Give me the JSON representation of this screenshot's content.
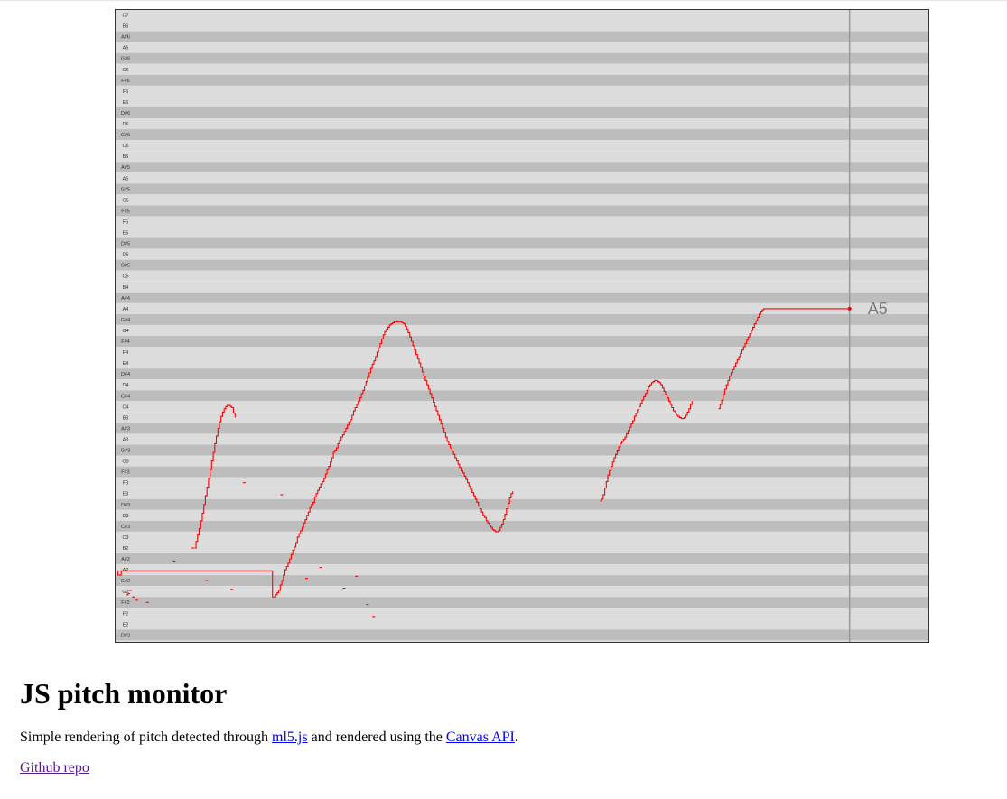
{
  "pitch_chart": {
    "notes_top_to_bottom": [
      "C7",
      "B6",
      "A#6",
      "A6",
      "G#6",
      "G6",
      "F#6",
      "F6",
      "E6",
      "D#6",
      "D6",
      "C#6",
      "C6",
      "B5",
      "A#5",
      "A5",
      "G#5",
      "G5",
      "F#5",
      "F5",
      "E5",
      "D#5",
      "D5",
      "C#5",
      "C5",
      "B4",
      "A#4",
      "A4",
      "G#4",
      "G4",
      "F#4",
      "F4",
      "E4",
      "D#4",
      "D4",
      "C#4",
      "C4",
      "B3",
      "A#3",
      "A3",
      "G#3",
      "G3",
      "F#3",
      "F3",
      "E3",
      "D#3",
      "D3",
      "C#3",
      "C3",
      "B2",
      "A#2",
      "A2",
      "G#2",
      "G2",
      "F#2",
      "F2",
      "E2",
      "D#2",
      "D2"
    ],
    "current_note": "A5",
    "colors": {
      "stripe_light": "#dcdcdc",
      "stripe_dark": "#bdbdbd",
      "trace": "#ff0000",
      "cursor_line": "#999999",
      "current_note_label": "#7a7a7a",
      "border": "#333333"
    }
  },
  "chart_data": {
    "type": "line",
    "title": "",
    "xlabel": "",
    "ylabel": "",
    "y_unit": "semitones relative to C3 (A5 = 21)",
    "x_unit": "sample index",
    "main_trace": [
      [
        0,
        -3.1
      ],
      [
        1,
        -3.5
      ],
      [
        2,
        -3.5
      ],
      [
        3,
        -3.1
      ],
      [
        100,
        -5.5
      ],
      [
        101,
        -5.5
      ],
      [
        102,
        -5.3
      ],
      [
        103,
        -5.1
      ],
      [
        104,
        -4.9
      ],
      [
        105,
        -4.4
      ],
      [
        106,
        -4.0
      ],
      [
        107,
        -3.5
      ],
      [
        108,
        -3.0
      ],
      [
        109,
        -2.7
      ],
      [
        110,
        -2.4
      ],
      [
        111,
        -2.0
      ],
      [
        112,
        -1.6
      ],
      [
        113,
        -1.2
      ],
      [
        114,
        -0.9
      ],
      [
        115,
        -0.5
      ],
      [
        116,
        0.0
      ],
      [
        117,
        0.3
      ],
      [
        118,
        0.6
      ],
      [
        119,
        0.9
      ],
      [
        120,
        1.3
      ],
      [
        121,
        1.6
      ],
      [
        122,
        2.0
      ],
      [
        123,
        2.3
      ],
      [
        124,
        2.7
      ],
      [
        125,
        3.0
      ],
      [
        126,
        3.2
      ],
      [
        127,
        3.7
      ],
      [
        128,
        4.0
      ],
      [
        129,
        4.3
      ],
      [
        130,
        4.6
      ],
      [
        131,
        4.9
      ],
      [
        132,
        5.1
      ],
      [
        133,
        5.4
      ],
      [
        134,
        5.8
      ],
      [
        135,
        6.2
      ],
      [
        136,
        6.5
      ],
      [
        137,
        6.9
      ],
      [
        138,
        7.3
      ],
      [
        139,
        7.8
      ],
      [
        140,
        8.0
      ],
      [
        141,
        8.2
      ],
      [
        142,
        8.6
      ],
      [
        143,
        8.9
      ],
      [
        144,
        9.2
      ],
      [
        145,
        9.4
      ],
      [
        146,
        9.7
      ],
      [
        147,
        10.0
      ],
      [
        148,
        10.3
      ],
      [
        149,
        10.6
      ],
      [
        150,
        10.8
      ],
      [
        151,
        11.2
      ],
      [
        152,
        11.6
      ],
      [
        153,
        11.9
      ],
      [
        154,
        12.2
      ],
      [
        155,
        12.5
      ],
      [
        156,
        12.8
      ],
      [
        157,
        13.2
      ],
      [
        158,
        13.5
      ],
      [
        159,
        13.9
      ],
      [
        160,
        14.3
      ],
      [
        161,
        14.7
      ],
      [
        162,
        15.1
      ],
      [
        163,
        15.5
      ],
      [
        164,
        15.9
      ],
      [
        165,
        16.2
      ],
      [
        166,
        16.6
      ],
      [
        167,
        17.0
      ],
      [
        168,
        17.4
      ],
      [
        169,
        17.8
      ],
      [
        170,
        18.2
      ],
      [
        171,
        18.6
      ],
      [
        172,
        18.9
      ],
      [
        173,
        19.1
      ],
      [
        174,
        19.3
      ],
      [
        175,
        19.5
      ],
      [
        176,
        19.6
      ],
      [
        177,
        19.7
      ],
      [
        178,
        19.8
      ],
      [
        179,
        19.8
      ],
      [
        180,
        19.8
      ],
      [
        181,
        19.8
      ],
      [
        182,
        19.8
      ],
      [
        183,
        19.7
      ],
      [
        184,
        19.6
      ],
      [
        185,
        19.4
      ],
      [
        186,
        19.1
      ],
      [
        187,
        18.8
      ],
      [
        188,
        18.4
      ],
      [
        189,
        18.0
      ],
      [
        190,
        17.6
      ],
      [
        191,
        17.2
      ],
      [
        192,
        16.8
      ],
      [
        193,
        16.4
      ],
      [
        194,
        16.0
      ],
      [
        195,
        15.6
      ],
      [
        196,
        15.2
      ],
      [
        197,
        14.8
      ],
      [
        198,
        14.4
      ],
      [
        199,
        14.0
      ],
      [
        200,
        13.6
      ],
      [
        201,
        13.2
      ],
      [
        202,
        12.8
      ],
      [
        203,
        12.4
      ],
      [
        204,
        12.0
      ],
      [
        205,
        11.6
      ],
      [
        206,
        11.2
      ],
      [
        207,
        10.8
      ],
      [
        208,
        10.4
      ],
      [
        209,
        10.0
      ],
      [
        210,
        9.6
      ],
      [
        211,
        9.2
      ],
      [
        212,
        8.8
      ],
      [
        213,
        8.5
      ],
      [
        214,
        8.2
      ],
      [
        215,
        7.9
      ],
      [
        216,
        7.6
      ],
      [
        217,
        7.3
      ],
      [
        218,
        7.0
      ],
      [
        219,
        6.7
      ],
      [
        220,
        6.4
      ],
      [
        221,
        6.1
      ],
      [
        222,
        5.9
      ],
      [
        223,
        5.6
      ],
      [
        224,
        5.3
      ],
      [
        225,
        5.0
      ],
      [
        226,
        4.7
      ],
      [
        227,
        4.4
      ],
      [
        228,
        4.1
      ],
      [
        229,
        3.8
      ],
      [
        230,
        3.5
      ],
      [
        231,
        3.2
      ],
      [
        232,
        2.9
      ],
      [
        233,
        2.6
      ],
      [
        234,
        2.3
      ],
      [
        235,
        2.0
      ],
      [
        236,
        1.8
      ],
      [
        237,
        1.5
      ],
      [
        238,
        1.3
      ],
      [
        239,
        1.1
      ],
      [
        240,
        0.9
      ],
      [
        241,
        0.7
      ],
      [
        242,
        0.6
      ],
      [
        243,
        0.5
      ],
      [
        244,
        0.5
      ],
      [
        245,
        0.6
      ],
      [
        246,
        0.9
      ],
      [
        247,
        1.2
      ],
      [
        248,
        1.6
      ],
      [
        249,
        2.1
      ],
      [
        250,
        2.6
      ],
      [
        251,
        3.1
      ],
      [
        252,
        3.6
      ],
      [
        253,
        4.0
      ],
      [
        254,
        4.2
      ]
    ],
    "trace_2": [
      [
        310,
        3.3
      ],
      [
        311,
        3.5
      ],
      [
        312,
        3.9
      ],
      [
        313,
        4.5
      ],
      [
        314,
        5.1
      ],
      [
        315,
        5.7
      ],
      [
        316,
        6.1
      ],
      [
        317,
        6.5
      ],
      [
        318,
        6.9
      ],
      [
        319,
        7.3
      ],
      [
        320,
        7.6
      ],
      [
        321,
        8.0
      ],
      [
        322,
        8.3
      ],
      [
        323,
        8.6
      ],
      [
        324,
        8.8
      ],
      [
        325,
        9.0
      ],
      [
        326,
        9.2
      ],
      [
        327,
        9.5
      ],
      [
        328,
        9.8
      ],
      [
        329,
        10.1
      ],
      [
        330,
        10.4
      ],
      [
        331,
        10.7
      ],
      [
        332,
        11.1
      ],
      [
        333,
        11.4
      ],
      [
        334,
        11.7
      ],
      [
        335,
        12.0
      ],
      [
        336,
        12.3
      ],
      [
        337,
        12.6
      ],
      [
        338,
        12.9
      ],
      [
        339,
        13.2
      ],
      [
        340,
        13.5
      ],
      [
        341,
        13.8
      ],
      [
        342,
        14.0
      ],
      [
        343,
        14.2
      ],
      [
        344,
        14.3
      ],
      [
        345,
        14.4
      ],
      [
        346,
        14.4
      ],
      [
        347,
        14.3
      ],
      [
        348,
        14.2
      ],
      [
        349,
        14.0
      ],
      [
        350,
        13.7
      ],
      [
        351,
        13.4
      ],
      [
        352,
        13.1
      ],
      [
        353,
        12.8
      ],
      [
        354,
        12.5
      ],
      [
        355,
        12.2
      ],
      [
        356,
        11.9
      ],
      [
        357,
        11.6
      ],
      [
        358,
        11.4
      ],
      [
        359,
        11.2
      ],
      [
        360,
        11.1
      ],
      [
        361,
        11.0
      ],
      [
        362,
        10.9
      ],
      [
        363,
        10.9
      ],
      [
        364,
        11.0
      ],
      [
        365,
        11.2
      ],
      [
        366,
        11.5
      ],
      [
        367,
        11.8
      ],
      [
        368,
        12.2
      ],
      [
        369,
        12.5
      ]
    ],
    "trace_3": [
      [
        386,
        11.8
      ],
      [
        387,
        12.2
      ],
      [
        388,
        12.6
      ],
      [
        389,
        13.1
      ],
      [
        390,
        13.6
      ],
      [
        391,
        14.0
      ],
      [
        392,
        14.4
      ],
      [
        393,
        14.8
      ],
      [
        394,
        15.1
      ],
      [
        395,
        15.4
      ],
      [
        396,
        15.7
      ],
      [
        397,
        16.0
      ],
      [
        398,
        16.3
      ],
      [
        399,
        16.6
      ],
      [
        400,
        16.9
      ],
      [
        401,
        17.2
      ],
      [
        402,
        17.5
      ],
      [
        403,
        17.8
      ],
      [
        404,
        18.1
      ],
      [
        405,
        18.4
      ],
      [
        406,
        18.7
      ],
      [
        407,
        19.0
      ],
      [
        408,
        19.3
      ],
      [
        409,
        19.6
      ],
      [
        410,
        19.9
      ],
      [
        411,
        20.2
      ],
      [
        412,
        20.5
      ],
      [
        413,
        20.7
      ],
      [
        414,
        20.9
      ],
      [
        415,
        21.0
      ],
      [
        416,
        21.0
      ],
      [
        417,
        21.0
      ],
      [
        418,
        21.0
      ],
      [
        419,
        21.0
      ],
      [
        420,
        21.0
      ],
      [
        421,
        21.0
      ],
      [
        422,
        21.0
      ],
      [
        423,
        21.0
      ],
      [
        424,
        21.0
      ],
      [
        425,
        21.0
      ],
      [
        426,
        21.0
      ],
      [
        427,
        21.0
      ],
      [
        428,
        21.0
      ],
      [
        429,
        21.0
      ],
      [
        430,
        21.0
      ],
      [
        431,
        21.0
      ],
      [
        432,
        21.0
      ],
      [
        433,
        21.0
      ],
      [
        434,
        21.0
      ],
      [
        435,
        21.0
      ],
      [
        436,
        21.0
      ],
      [
        437,
        21.0
      ],
      [
        438,
        21.0
      ],
      [
        439,
        21.0
      ],
      [
        440,
        21.0
      ],
      [
        441,
        21.0
      ],
      [
        442,
        21.0
      ],
      [
        443,
        21.0
      ],
      [
        444,
        21.0
      ],
      [
        445,
        21.0
      ],
      [
        446,
        21.0
      ],
      [
        447,
        21.0
      ],
      [
        448,
        21.0
      ],
      [
        449,
        21.0
      ],
      [
        450,
        21.0
      ],
      [
        451,
        21.0
      ],
      [
        452,
        21.0
      ],
      [
        453,
        21.0
      ],
      [
        454,
        21.0
      ],
      [
        455,
        21.0
      ],
      [
        456,
        21.0
      ],
      [
        457,
        21.0
      ],
      [
        458,
        21.0
      ],
      [
        459,
        21.0
      ],
      [
        460,
        21.0
      ],
      [
        461,
        21.0
      ],
      [
        462,
        21.0
      ],
      [
        463,
        21.0
      ],
      [
        464,
        21.0
      ],
      [
        465,
        21.0
      ],
      [
        466,
        21.0
      ],
      [
        467,
        21.0
      ],
      [
        468,
        21.0
      ],
      [
        469,
        21.0
      ],
      [
        470,
        21.0
      ]
    ],
    "early_trace": [
      [
        50,
        -1.0
      ],
      [
        51,
        -0.4
      ],
      [
        52,
        0.2
      ],
      [
        53,
        0.8
      ],
      [
        54,
        1.5
      ],
      [
        55,
        2.2
      ],
      [
        56,
        3.0
      ],
      [
        57,
        3.8
      ],
      [
        58,
        4.6
      ],
      [
        59,
        5.4
      ],
      [
        60,
        6.2
      ],
      [
        61,
        7.0
      ],
      [
        62,
        7.8
      ],
      [
        63,
        8.6
      ],
      [
        64,
        9.3
      ],
      [
        65,
        10.0
      ],
      [
        66,
        10.6
      ],
      [
        67,
        11.1
      ],
      [
        68,
        11.5
      ],
      [
        69,
        11.8
      ],
      [
        70,
        12.0
      ],
      [
        71,
        12.1
      ],
      [
        72,
        12.1
      ],
      [
        73,
        12.0
      ],
      [
        74,
        11.9
      ],
      [
        75,
        11.4
      ],
      [
        76,
        11.0
      ]
    ],
    "isolated_points": [
      [
        6,
        -5.3
      ],
      [
        7,
        -5.2
      ],
      [
        8,
        -4.9
      ],
      [
        10,
        -5.5
      ],
      [
        12,
        -5.8
      ],
      [
        19,
        -6.0
      ],
      [
        36,
        -2.2
      ],
      [
        48,
        -1.0
      ],
      [
        57,
        -4.0
      ],
      [
        73,
        -4.8
      ],
      [
        81,
        5.0
      ],
      [
        105,
        3.9
      ],
      [
        121,
        -3.8
      ],
      [
        130,
        -2.8
      ],
      [
        145,
        -4.7
      ],
      [
        153,
        -3.6
      ],
      [
        160,
        -6.2
      ],
      [
        164,
        -7.3
      ]
    ],
    "cursor_sample": 470,
    "current_value": 21.0,
    "current_label": "A5"
  },
  "article": {
    "title": "JS pitch monitor",
    "intro_before": "Simple rendering of pitch detected through ",
    "link1": "ml5.js",
    "intro_middle": " and rendered using the ",
    "link2": "Canvas API",
    "intro_after": ".",
    "repo_link": "Github repo"
  }
}
